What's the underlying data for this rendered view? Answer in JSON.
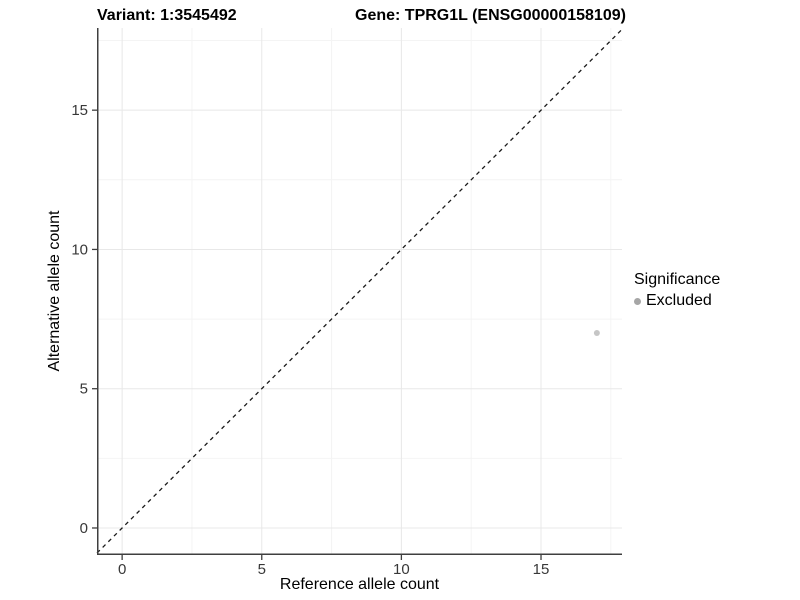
{
  "figure": {
    "title_left": "Variant: 1:3545492",
    "title_right": "Gene: TPRG1L (ENSG00000158109)"
  },
  "chart_data": {
    "type": "scatter",
    "title": "Variant: 1:3545492 / Gene: TPRG1L (ENSG00000158109)",
    "xlabel": "Reference allele count",
    "ylabel": "Alternative allele count",
    "xlim": [
      -0.9,
      17.9
    ],
    "ylim": [
      -0.97,
      17.95
    ],
    "x_ticks": [
      0,
      5,
      10,
      15
    ],
    "y_ticks": [
      0,
      5,
      10,
      15
    ],
    "x_minor": [
      2.5,
      7.5,
      12.5,
      17.5
    ],
    "y_minor": [
      2.5,
      7.5,
      12.5,
      17.5
    ],
    "grid": "major and minor, light gray, white background",
    "legend_position": "right",
    "reference_line": {
      "kind": "abline",
      "slope": 1,
      "intercept": 0,
      "style": "dashed"
    },
    "series": [
      {
        "name": "Excluded",
        "color": "#c6c6c6",
        "points": [
          {
            "x": 17,
            "y": 7
          }
        ]
      }
    ],
    "legend": {
      "title": "Significance",
      "entries": [
        {
          "label": "Excluded",
          "color": "#a6a6a6"
        }
      ]
    }
  },
  "colors": {
    "background": "#ffffff",
    "grid_major": "#e8e8e8",
    "grid_minor": "#f4f4f4",
    "axis_line": "#3f3f3f",
    "tick_text": "#383838",
    "identity_line": "#1a1a1a",
    "point": "#c6c6c6",
    "legend_point": "#a6a6a6"
  }
}
